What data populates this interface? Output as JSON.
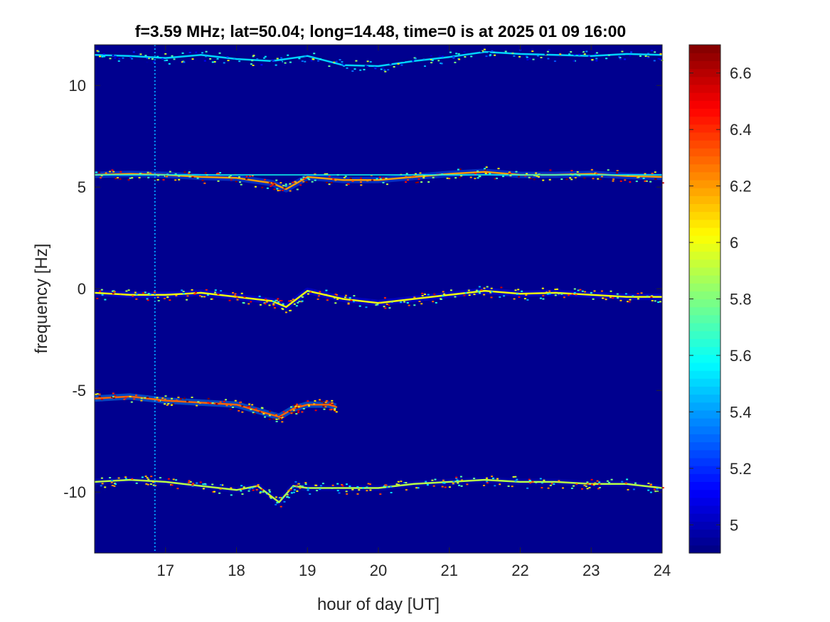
{
  "chart_data": {
    "type": "heatmap",
    "title": "f=3.59 MHz;  lat=50.04; long=14.48, time=0 is at 2025 01 09 16:00",
    "xlabel": "hour of day [UT]",
    "ylabel": "frequency [Hz]",
    "xlim": [
      16,
      24
    ],
    "ylim": [
      -13,
      12
    ],
    "xticks": [
      17,
      18,
      19,
      20,
      21,
      22,
      23,
      24
    ],
    "xtick_labels": [
      "17",
      "18",
      "19",
      "20",
      "21",
      "22",
      "23",
      "24"
    ],
    "yticks": [
      10,
      5,
      0,
      -5,
      -10
    ],
    "ytick_labels": [
      "10",
      "5",
      "0",
      "-5",
      "-10"
    ],
    "colorbar": {
      "colormap": "jet",
      "range": [
        4.9,
        6.7
      ],
      "ticks": [
        6.6,
        6.4,
        6.2,
        6,
        5.8,
        5.6,
        5.4,
        5.2,
        5
      ],
      "tick_labels": [
        "6.6",
        "6.4",
        "6.2",
        "6",
        "5.8",
        "5.6",
        "5.4",
        "5.2",
        "5"
      ]
    },
    "background_color": "#00008f",
    "series": [
      {
        "x": [
          16.0,
          16.5,
          17.0,
          17.5,
          18.0,
          18.5,
          19.0,
          19.5,
          20.0,
          20.5,
          21.0,
          21.5,
          22.0,
          22.5,
          23.0,
          23.5,
          24.0
        ],
        "values": [
          11.5,
          11.45,
          11.35,
          11.5,
          11.3,
          11.2,
          11.45,
          11.0,
          10.95,
          11.2,
          11.4,
          11.65,
          11.55,
          11.5,
          11.45,
          11.55,
          11.5
        ],
        "intensity": 5.5
      },
      {
        "x": [
          16.0,
          16.5,
          17.0,
          17.5,
          18.0,
          18.5,
          18.7,
          19.0,
          19.5,
          20.0,
          20.5,
          21.0,
          21.5,
          22.0,
          22.5,
          23.0,
          23.5,
          24.0
        ],
        "values": [
          5.6,
          5.65,
          5.6,
          5.5,
          5.45,
          5.2,
          4.9,
          5.5,
          5.35,
          5.35,
          5.5,
          5.65,
          5.75,
          5.6,
          5.6,
          5.65,
          5.55,
          5.5
        ],
        "intensity": 6.2
      },
      {
        "x": [
          16.0,
          16.5,
          17.0,
          17.5,
          18.0,
          18.5,
          18.7,
          19.0,
          19.5,
          20.0,
          20.5,
          21.0,
          21.5,
          22.0,
          22.5,
          23.0,
          23.5,
          24.0
        ],
        "values": [
          -0.2,
          -0.3,
          -0.3,
          -0.2,
          -0.4,
          -0.6,
          -0.9,
          -0.1,
          -0.5,
          -0.7,
          -0.5,
          -0.3,
          -0.1,
          -0.25,
          -0.2,
          -0.3,
          -0.4,
          -0.4
        ],
        "intensity": 6.0
      },
      {
        "x": [
          16.0,
          16.5,
          17.0,
          17.5,
          18.0,
          18.3,
          18.6,
          18.8,
          19.0,
          19.3,
          19.4
        ],
        "values": [
          -5.4,
          -5.3,
          -5.5,
          -5.6,
          -5.7,
          -6.0,
          -6.3,
          -5.9,
          -5.7,
          -5.7,
          -5.8
        ],
        "intensity": 6.3
      },
      {
        "x": [
          16.0,
          16.5,
          17.0,
          17.5,
          18.0,
          18.3,
          18.6,
          18.8,
          19.0,
          19.5,
          20.0,
          20.5,
          21.0,
          21.5,
          22.0,
          22.5,
          23.0,
          23.5,
          24.0
        ],
        "values": [
          -9.5,
          -9.4,
          -9.5,
          -9.7,
          -9.9,
          -9.7,
          -10.5,
          -9.7,
          -9.8,
          -9.8,
          -9.8,
          -9.6,
          -9.5,
          -9.4,
          -9.5,
          -9.5,
          -9.6,
          -9.6,
          -9.8
        ],
        "intensity": 5.9
      }
    ],
    "vertical_line": {
      "x": 16.85,
      "intensity": 5.4
    },
    "flat_line": {
      "y": 5.6,
      "intensity": 5.6
    }
  }
}
